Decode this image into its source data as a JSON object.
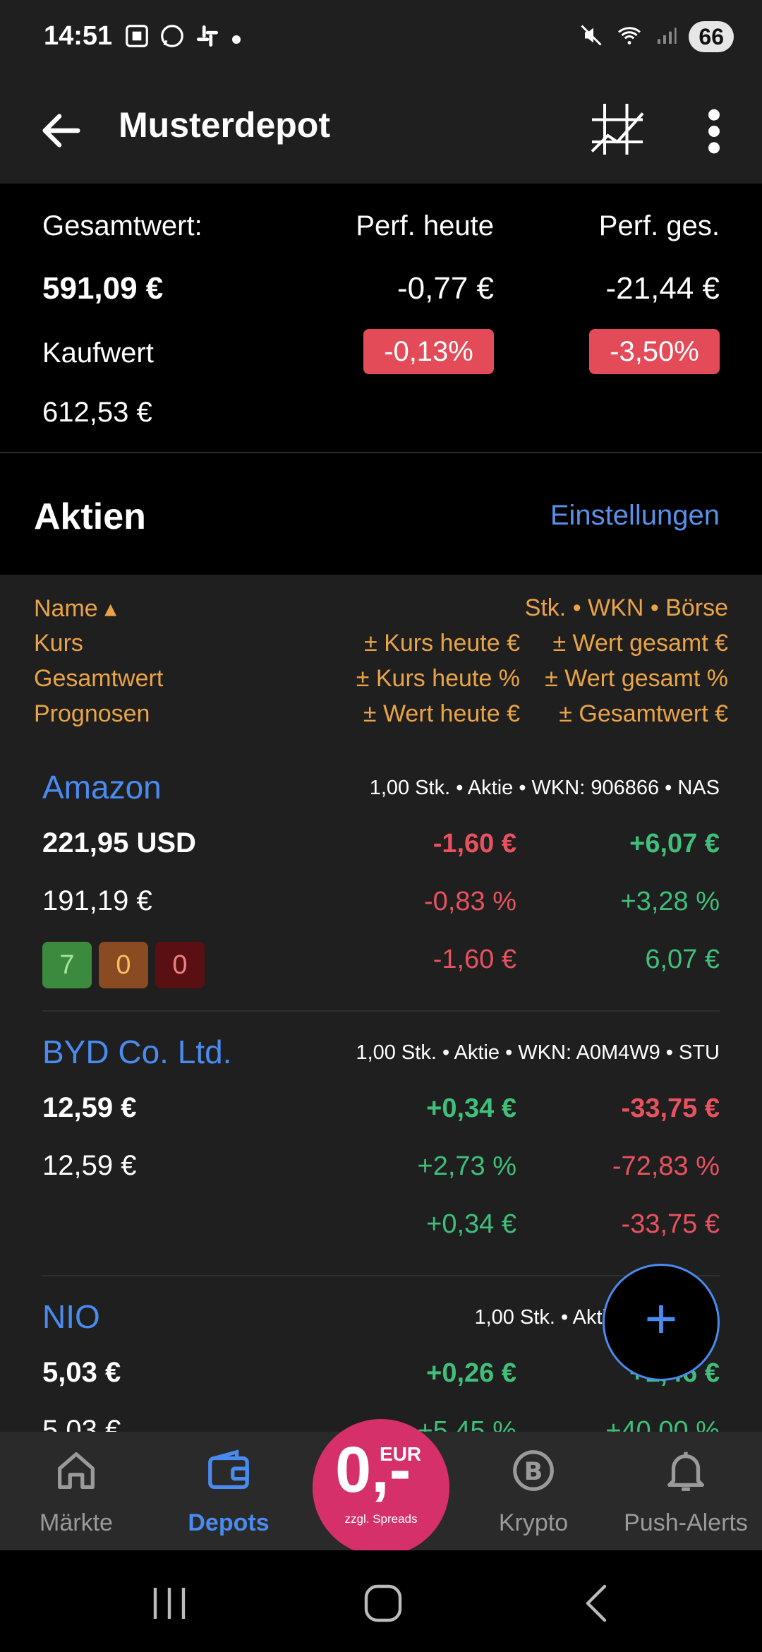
{
  "status_bar": {
    "time": "14:51",
    "left_icons": [
      "screenshot-icon",
      "whatsapp-icon",
      "slack-icon",
      "dot-icon"
    ],
    "right_icons": [
      "mute-icon",
      "wifi-icon",
      "signal-icon"
    ],
    "battery": "66"
  },
  "app_bar": {
    "title": "Musterdepot",
    "icons": [
      "back-arrow-icon",
      "chart-grid-icon",
      "more-vert-icon"
    ]
  },
  "summary": {
    "total_label": "Gesamtwert:",
    "total_value": "591,09 €",
    "purchase_label": "Kaufwert",
    "purchase_value": "612,53 €",
    "perf_today_label": "Perf. heute",
    "perf_today_abs": "-0,77 €",
    "perf_today_pct": "-0,13%",
    "perf_total_label": "Perf. ges.",
    "perf_total_abs": "-21,44 €",
    "perf_total_pct": "-3,50%"
  },
  "section": {
    "title": "Aktien",
    "settings_link": "Einstellungen"
  },
  "legend": {
    "col1": [
      "Name ▴",
      "Kurs",
      "Gesamtwert",
      "Prognosen"
    ],
    "col2_top": "Stk. • WKN • Börse",
    "col2": [
      "± Kurs heute €",
      "± Kurs heute %",
      "± Wert heute €"
    ],
    "col3": [
      "± Wert gesamt €",
      "± Wert gesamt %",
      "± Gesamtwert €"
    ]
  },
  "stocks": [
    {
      "name": "Amazon",
      "meta": "1,00 Stk. • Aktie • WKN: 906866 • NAS",
      "price": "221,95 USD",
      "total": "191,19 €",
      "today_abs": "-1,60 €",
      "today_pct": "-0,83 %",
      "today_value": "-1,60 €",
      "overall_abs": "+6,07 €",
      "overall_pct": "+3,28 %",
      "overall_value": "6,07 €",
      "forecasts": [
        "7",
        "0",
        "0"
      ]
    },
    {
      "name": "BYD Co. Ltd.",
      "meta": "1,00 Stk. • Aktie • WKN: A0M4W9 • STU",
      "price": "12,59 €",
      "total": "12,59 €",
      "today_abs": "+0,34 €",
      "today_pct": "+2,73 %",
      "today_value": "+0,34 €",
      "overall_abs": "-33,75 €",
      "overall_pct": "-72,83 %",
      "overall_value": "-33,75 €"
    },
    {
      "name": "NIO",
      "meta": "1,00 Stk. • Aktie • WKN: A2",
      "price": "5,03 €",
      "total": "5,03 €",
      "today_abs": "+0,26 €",
      "today_pct": "+5,45 %",
      "overall_abs": "+1,46 €",
      "overall_pct": "+40,00 %"
    }
  ],
  "fab": {
    "label": "+"
  },
  "bottom_nav": {
    "items": [
      {
        "label": "Märkte",
        "icon": "home-icon"
      },
      {
        "label": "Depots",
        "icon": "wallet-icon"
      },
      {
        "label": "Krypto",
        "icon": "bitcoin-icon"
      },
      {
        "label": "Push-Alerts",
        "icon": "bell-icon"
      }
    ],
    "promo": {
      "big": "0,-",
      "currency": "EUR",
      "sub": "zzgl. Spreads"
    }
  },
  "colors": {
    "negative": "#e8525f",
    "positive": "#3fbf7a",
    "accent": "#4a8bf0",
    "legend": "#e9a448",
    "promo": "#d6306a"
  }
}
